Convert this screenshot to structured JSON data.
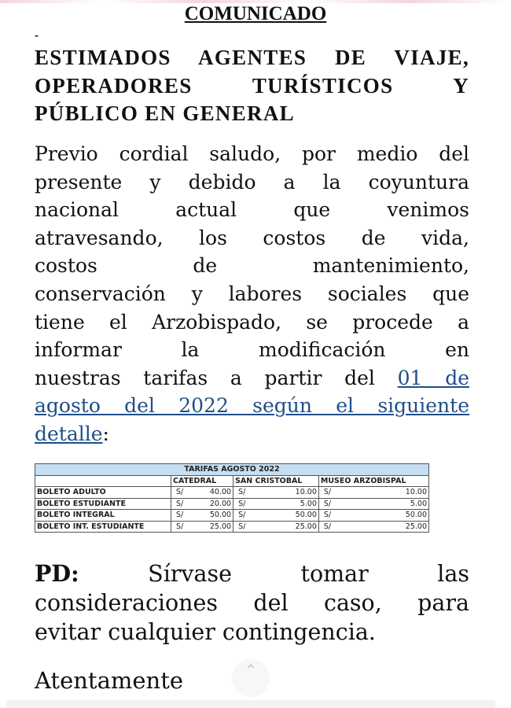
{
  "title": "COMUNICADO",
  "dash": "-",
  "heading_lines": [
    "ESTIMADOS AGENTES DE VIAJE,",
    "OPERADORES TURÍSTICOS Y",
    "PÚBLICO EN GENERAL"
  ],
  "paragraph": {
    "lines": [
      "Previo cordial saludo, por medio del",
      "presente y debido a la coyuntura",
      "nacional actual que venimos",
      "atravesando, los costos de vida,",
      "costos de mantenimiento,",
      "conservación y labores sociales que",
      "tiene el Arzobispado, se procede a",
      "informar la modificación en",
      "nuestras tarifas a partir del "
    ],
    "link_lines": [
      "01 de",
      "agosto del 2022 según el siguiente",
      "detalle"
    ],
    "end": ":"
  },
  "table": {
    "caption": "TARIFAS AGOSTO 2022",
    "columns": [
      "CATEDRAL",
      "SAN CRISTOBAL",
      "MUSEO ARZOBISPAL"
    ],
    "currency": "S/",
    "rows": [
      {
        "label": "BOLETO ADULTO",
        "values": [
          "40.00",
          "10.00",
          "10.00"
        ]
      },
      {
        "label": "BOLETO ESTUDIANTE",
        "values": [
          "20.00",
          "5.00",
          "5.00"
        ]
      },
      {
        "label": "BOLETO INTEGRAL",
        "values": [
          "50.00",
          "50.00",
          "50.00"
        ]
      },
      {
        "label": "BOLETO INT. ESTUDIANTE",
        "values": [
          "25.00",
          "25.00",
          "25.00"
        ]
      }
    ]
  },
  "pd": {
    "label": "PD:",
    "lines": [
      "Sírvase tomar las",
      "consideraciones del caso, para",
      "evitar cualquier contingencia."
    ]
  },
  "closing": "Atentamente",
  "scroll_top_icon": "chevron-up-icon",
  "colors": {
    "link": "#1f4e8a",
    "table_caption_bg": "#c5def2"
  }
}
